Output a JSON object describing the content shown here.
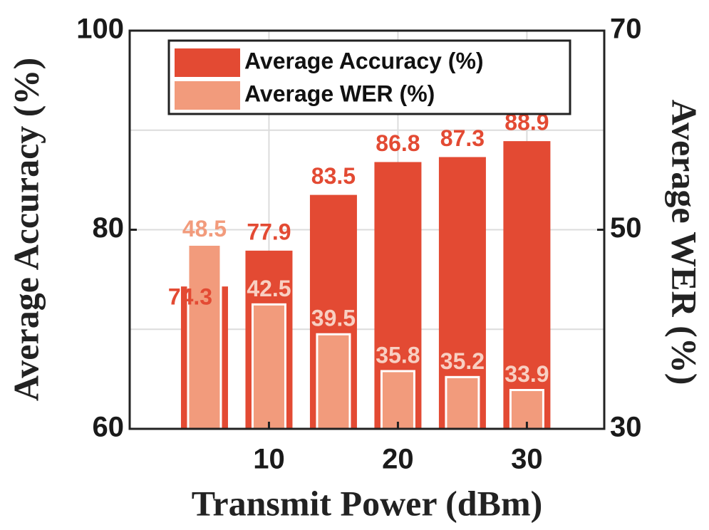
{
  "chart_data": {
    "type": "bar",
    "x_label": "Transmit Power (dBm)",
    "y_label": "Average Accuracy (%)",
    "y2_label": "Average WER (%)",
    "x": [
      5,
      10,
      15,
      20,
      25,
      30
    ],
    "series": [
      {
        "name": "Average Accuracy (%)",
        "color": "#e34a33",
        "values": [
          74.3,
          77.9,
          83.5,
          86.8,
          87.3,
          88.9
        ]
      },
      {
        "name": "Average WER (%)",
        "color": "#f29b7c",
        "axis": "y2",
        "values": [
          48.5,
          42.5,
          39.5,
          35.8,
          35.2,
          33.9
        ]
      }
    ],
    "xlim": [
      -0.8,
      36
    ],
    "xticks": [
      10,
      20,
      30
    ],
    "ylim": [
      60,
      100
    ],
    "yticks": [
      60,
      80,
      100
    ],
    "minor_yticks": [
      70,
      90
    ],
    "y2lim": [
      30,
      70
    ],
    "y2ticks": [
      30,
      50,
      70
    ],
    "grid": true,
    "legend": "top"
  }
}
